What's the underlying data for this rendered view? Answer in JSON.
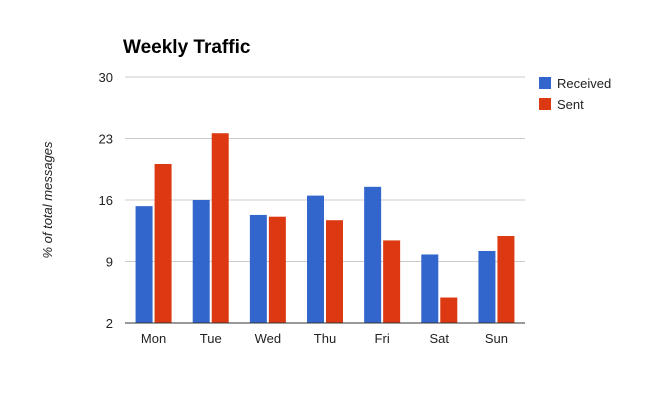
{
  "chart_data": {
    "type": "bar",
    "title": "Weekly Traffic",
    "xlabel": "",
    "ylabel": "% of total messages",
    "categories": [
      "Mon",
      "Tue",
      "Wed",
      "Thu",
      "Fri",
      "Sat",
      "Sun"
    ],
    "series": [
      {
        "name": "Received",
        "color": "#3366cc",
        "values": [
          15.3,
          16.0,
          14.3,
          16.5,
          17.5,
          9.8,
          10.2
        ]
      },
      {
        "name": "Sent",
        "color": "#dc3912",
        "values": [
          20.1,
          23.6,
          14.1,
          13.7,
          11.4,
          4.9,
          11.9
        ]
      }
    ],
    "ylim": [
      2,
      30
    ],
    "yticks": [
      2,
      9,
      16,
      23,
      30
    ],
    "grid": true,
    "legend": "right"
  }
}
